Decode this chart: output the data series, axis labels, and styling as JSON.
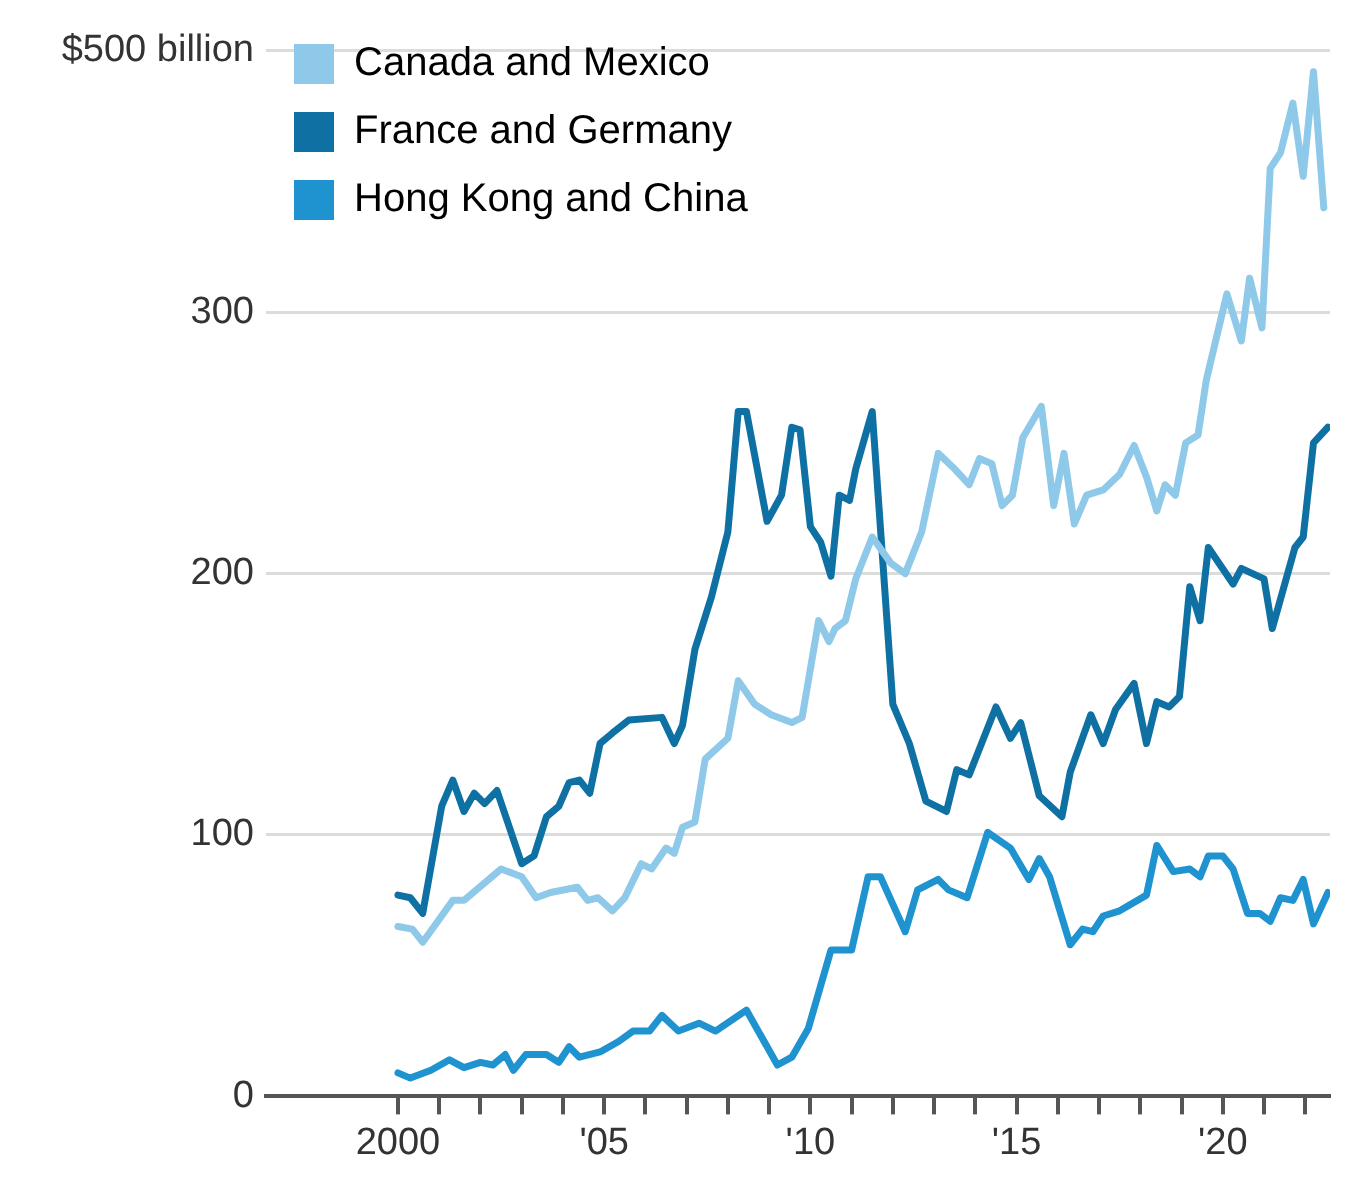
{
  "chart_data": {
    "type": "line",
    "series": [
      {
        "name": "Canada and Mexico",
        "color": "#8fc9ea",
        "x": [
          2000.0,
          2000.35,
          2000.6,
          2001.33,
          2001.6,
          2002.5,
          2003.0,
          2003.35,
          2003.7,
          2004.35,
          2004.6,
          2004.85,
          2005.2,
          2005.5,
          2005.9,
          2006.15,
          2006.5,
          2006.7,
          2006.9,
          2007.2,
          2007.45,
          2008.0,
          2008.25,
          2008.65,
          2009.05,
          2009.55,
          2009.8,
          2010.2,
          2010.45,
          2010.6,
          2010.85,
          2011.1,
          2011.5,
          2011.95,
          2012.3,
          2012.7,
          2013.1,
          2013.5,
          2013.85,
          2014.1,
          2014.4,
          2014.65,
          2014.9,
          2015.15,
          2015.6,
          2015.9,
          2016.15,
          2016.4,
          2016.7,
          2017.1,
          2017.5,
          2017.85,
          2018.15,
          2018.4,
          2018.6,
          2018.85,
          2019.1,
          2019.4,
          2019.6,
          2020.1,
          2020.45,
          2020.65,
          2020.95,
          2021.15,
          2021.4,
          2021.7,
          2021.95,
          2022.2,
          2022.45
        ],
        "values": [
          65,
          64,
          59,
          75,
          75,
          87,
          84,
          76,
          78,
          80,
          75,
          76,
          71,
          76,
          89,
          87,
          95,
          93,
          103,
          105,
          129,
          137,
          159,
          150,
          146,
          143,
          145,
          182,
          174,
          179,
          182,
          198,
          214,
          204,
          200,
          216,
          246,
          240,
          234,
          244,
          242,
          226,
          230,
          252,
          264,
          226,
          246,
          219,
          230,
          232,
          238,
          249,
          237,
          224,
          234,
          230,
          250,
          253,
          274,
          307,
          289,
          313,
          294,
          355,
          361,
          380,
          352,
          392,
          340
        ]
      },
      {
        "name": "France and Germany",
        "color": "#0f71a3",
        "x": [
          2000.0,
          2000.3,
          2000.6,
          2001.06,
          2001.33,
          2001.6,
          2001.85,
          2002.1,
          2002.4,
          2003.0,
          2003.3,
          2003.6,
          2003.9,
          2004.15,
          2004.4,
          2004.65,
          2004.9,
          2005.2,
          2005.6,
          2006.4,
          2006.7,
          2006.9,
          2007.2,
          2007.6,
          2008.0,
          2008.25,
          2008.45,
          2008.95,
          2009.3,
          2009.55,
          2009.75,
          2010.0,
          2010.25,
          2010.5,
          2010.7,
          2010.95,
          2011.1,
          2011.5,
          2012.0,
          2012.4,
          2012.8,
          2013.3,
          2013.55,
          2013.85,
          2014.5,
          2014.85,
          2015.1,
          2015.55,
          2016.1,
          2016.3,
          2016.8,
          2017.1,
          2017.4,
          2017.85,
          2018.15,
          2018.4,
          2018.7,
          2018.95,
          2019.2,
          2019.45,
          2019.65,
          2020.25,
          2020.45,
          2021.0,
          2021.2,
          2021.75,
          2021.95,
          2022.2,
          2022.55
        ],
        "values": [
          77,
          76,
          70,
          111,
          121,
          109,
          116,
          112,
          117,
          89,
          92,
          107,
          111,
          120,
          121,
          116,
          135,
          139,
          144,
          145,
          135,
          142,
          171,
          191,
          216,
          262,
          262,
          220,
          230,
          256,
          255,
          218,
          212,
          199,
          230,
          228,
          240,
          262,
          150,
          135,
          113,
          109,
          125,
          123,
          149,
          137,
          143,
          115,
          107,
          124,
          146,
          135,
          148,
          158,
          135,
          151,
          149,
          153,
          195,
          182,
          210,
          196,
          202,
          198,
          179,
          210,
          214,
          250,
          256
        ]
      },
      {
        "name": "Hong Kong and China",
        "color": "#1f93d0",
        "x": [
          2000.0,
          2000.3,
          2000.8,
          2001.25,
          2001.6,
          2002.0,
          2002.3,
          2002.6,
          2002.8,
          2003.1,
          2003.6,
          2003.9,
          2004.15,
          2004.4,
          2004.9,
          2005.35,
          2005.7,
          2006.1,
          2006.4,
          2006.8,
          2007.3,
          2007.7,
          2008.45,
          2009.2,
          2009.55,
          2009.95,
          2010.5,
          2011.0,
          2011.4,
          2011.7,
          2012.3,
          2012.6,
          2013.1,
          2013.35,
          2013.8,
          2014.3,
          2014.85,
          2015.3,
          2015.55,
          2015.8,
          2016.3,
          2016.6,
          2016.85,
          2017.1,
          2017.5,
          2018.15,
          2018.4,
          2018.8,
          2019.2,
          2019.45,
          2019.65,
          2020.0,
          2020.25,
          2020.6,
          2020.9,
          2021.15,
          2021.4,
          2021.7,
          2021.95,
          2022.2,
          2022.55
        ],
        "values": [
          9,
          7,
          10,
          14,
          11,
          13,
          12,
          16,
          10,
          16,
          16,
          13,
          19,
          15,
          17,
          21,
          25,
          25,
          31,
          25,
          28,
          25,
          33,
          12,
          15,
          26,
          56,
          56,
          84,
          84,
          63,
          79,
          83,
          79,
          76,
          101,
          95,
          83,
          91,
          84,
          58,
          64,
          63,
          69,
          71,
          77,
          96,
          86,
          87,
          84,
          92,
          92,
          87,
          70,
          70,
          67,
          76,
          75,
          83,
          66,
          78
        ]
      }
    ],
    "xlim": [
      1996.8,
      2022.6
    ],
    "xticks": [
      {
        "value": 2000,
        "label": "2000"
      },
      {
        "value": 2001,
        "label": null
      },
      {
        "value": 2002,
        "label": null
      },
      {
        "value": 2003,
        "label": null
      },
      {
        "value": 2004,
        "label": null
      },
      {
        "value": 2005,
        "label": "'05"
      },
      {
        "value": 2006,
        "label": null
      },
      {
        "value": 2007,
        "label": null
      },
      {
        "value": 2008,
        "label": null
      },
      {
        "value": 2009,
        "label": null
      },
      {
        "value": 2010,
        "label": "'10"
      },
      {
        "value": 2011,
        "label": null
      },
      {
        "value": 2012,
        "label": null
      },
      {
        "value": 2013,
        "label": null
      },
      {
        "value": 2014,
        "label": null
      },
      {
        "value": 2015,
        "label": "'15"
      },
      {
        "value": 2016,
        "label": null
      },
      {
        "value": 2017,
        "label": null
      },
      {
        "value": 2018,
        "label": null
      },
      {
        "value": 2019,
        "label": null
      },
      {
        "value": 2020,
        "label": "'20"
      },
      {
        "value": 2021,
        "label": null
      },
      {
        "value": 2022,
        "label": null
      }
    ],
    "ylim": [
      0,
      400
    ],
    "yticks": [
      0,
      100,
      200,
      300,
      {
        "value": 400,
        "label": null
      }
    ],
    "annotations": [
      "$500 billion"
    ],
    "grid": "y",
    "legend": "top left",
    "marker": "none",
    "line_style": "solid"
  }
}
